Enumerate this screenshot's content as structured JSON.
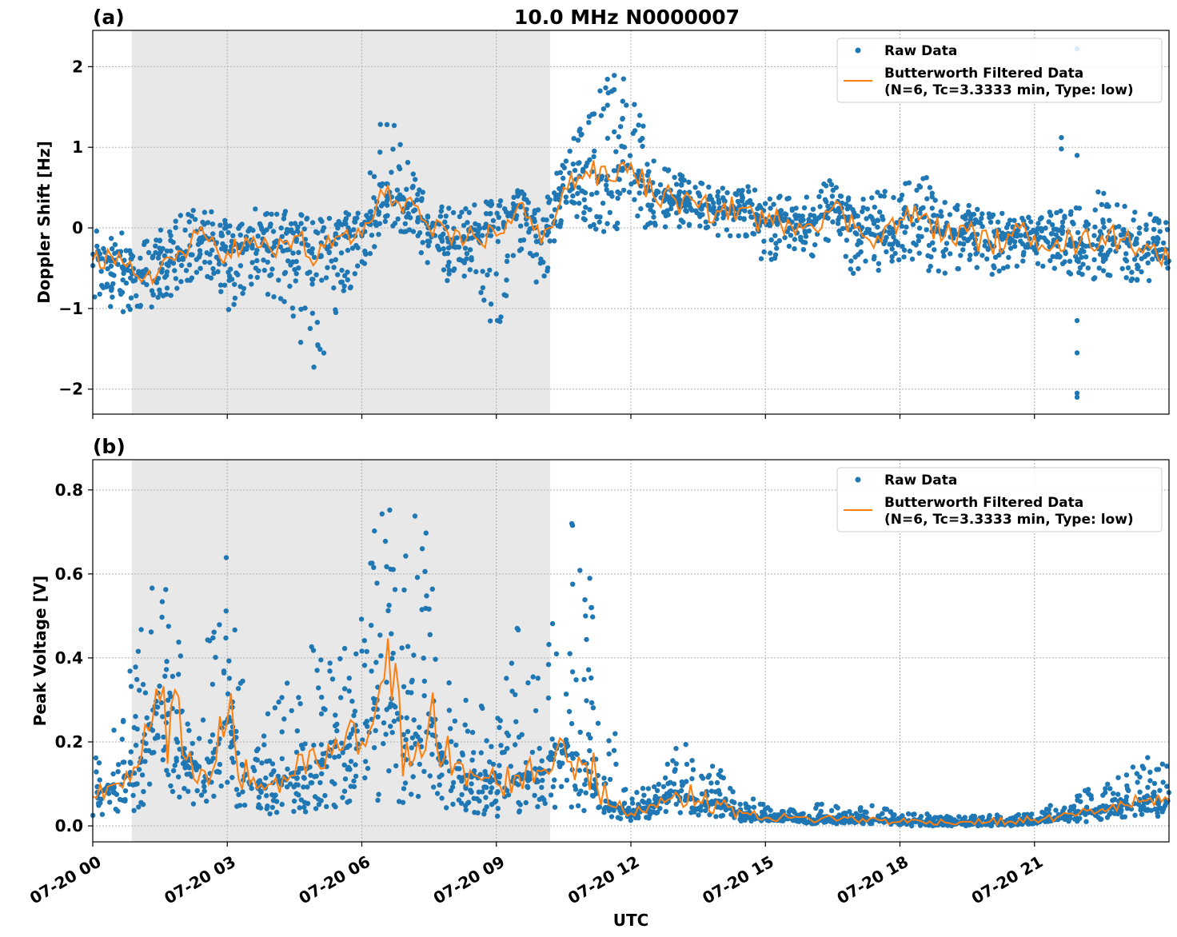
{
  "chart_data": [
    {
      "type": "scatter",
      "panel_label": "(a)",
      "title": "10.0 MHz N0000007",
      "ylabel": "Doppler Shift [Hz]",
      "xlabel": "",
      "x_unit": "hours UTC on 07-20",
      "xlim": [
        0,
        24
      ],
      "ylim": [
        -2.31,
        2.45
      ],
      "yticks": [
        2,
        1,
        0,
        -1,
        -2
      ],
      "ytick_labels": [
        "2",
        "1",
        "0",
        "−1",
        "−2"
      ],
      "grid": true,
      "legend": {
        "placement": "top-right",
        "entries": [
          "Raw Data",
          "Butterworth Filtered Data",
          "(N=6, Tc=3.3333 min, Type: low)"
        ]
      },
      "shaded_region_hours": [
        0.87,
        10.2
      ],
      "x": [
        0,
        0.5,
        1,
        1.5,
        2,
        2.5,
        3,
        3.5,
        4,
        4.5,
        5,
        5.5,
        6,
        6.5,
        7,
        7.5,
        8,
        8.5,
        9,
        9.5,
        10,
        10.5,
        11,
        11.5,
        12,
        12.5,
        13,
        13.5,
        14,
        14.5,
        15,
        15.5,
        16,
        16.5,
        17,
        17.5,
        18,
        18.5,
        19,
        19.5,
        20,
        20.5,
        21,
        21.5,
        22,
        22.5,
        23,
        23.5,
        24
      ],
      "series": [
        {
          "name": "Butterworth Filtered Data",
          "kind": "line",
          "values": [
            -0.4,
            -0.45,
            -0.6,
            -0.5,
            -0.3,
            -0.1,
            -0.3,
            -0.2,
            -0.3,
            -0.1,
            -0.4,
            -0.1,
            -0.1,
            0.4,
            0.35,
            0.0,
            -0.2,
            -0.1,
            -0.1,
            0.3,
            -0.2,
            0.5,
            0.7,
            0.6,
            0.8,
            0.4,
            0.35,
            0.25,
            0.2,
            0.25,
            0.05,
            0.1,
            0.05,
            0.25,
            0.0,
            -0.1,
            0.1,
            0.15,
            -0.1,
            -0.05,
            -0.2,
            -0.1,
            -0.1,
            -0.15,
            -0.2,
            -0.1,
            -0.15,
            -0.2,
            -0.4
          ]
        },
        {
          "name": "Raw Data",
          "kind": "scatter-envelope",
          "low": [
            -0.9,
            -1.0,
            -1.15,
            -1.0,
            -0.8,
            -0.6,
            -1.2,
            -0.8,
            -0.9,
            -1.3,
            -2.0,
            -0.9,
            -0.6,
            0.0,
            -0.1,
            -0.5,
            -0.7,
            -0.6,
            -1.4,
            -0.3,
            -0.8,
            0.1,
            0.0,
            -0.1,
            0.0,
            0.0,
            0.0,
            -0.05,
            -0.1,
            -0.1,
            -0.45,
            -0.3,
            -0.4,
            -0.1,
            -0.7,
            -0.55,
            -0.4,
            -0.5,
            -0.7,
            -0.5,
            -0.6,
            -0.5,
            -0.5,
            -0.55,
            -0.7,
            -0.6,
            -0.65,
            -0.7,
            -0.8
          ],
          "high": [
            0.05,
            0.0,
            -0.1,
            0.0,
            0.2,
            0.25,
            0.15,
            0.25,
            0.2,
            0.25,
            0.15,
            0.2,
            0.25,
            1.7,
            0.85,
            0.3,
            0.3,
            0.3,
            0.35,
            0.5,
            0.2,
            0.9,
            1.4,
            2.0,
            1.85,
            0.9,
            0.7,
            0.6,
            0.5,
            0.55,
            0.4,
            0.45,
            0.4,
            0.65,
            0.4,
            0.5,
            0.5,
            0.75,
            0.35,
            0.3,
            0.2,
            0.2,
            0.25,
            0.25,
            0.3,
            0.5,
            0.3,
            0.2,
            0.1
          ]
        },
        {
          "name": "Raw Data outliers",
          "kind": "points",
          "points": [
            [
              21.6,
              1.12
            ],
            [
              21.6,
              0.98
            ],
            [
              21.95,
              0.9
            ],
            [
              21.95,
              -1.15
            ],
            [
              21.95,
              -1.55
            ],
            [
              21.95,
              -2.05
            ],
            [
              21.95,
              -2.1
            ],
            [
              21.95,
              2.22
            ]
          ]
        }
      ]
    },
    {
      "type": "scatter",
      "panel_label": "(b)",
      "ylabel": "Peak Voltage [V]",
      "xlabel": "UTC",
      "xlim": [
        0,
        24
      ],
      "ylim": [
        -0.038,
        0.872
      ],
      "yticks": [
        0.0,
        0.2,
        0.4,
        0.6,
        0.8
      ],
      "ytick_labels": [
        "0.0",
        "0.2",
        "0.4",
        "0.6",
        "0.8"
      ],
      "xticks": [
        0,
        3,
        6,
        9,
        12,
        15,
        18,
        21
      ],
      "xtick_labels": [
        "07-20 00",
        "07-20 03",
        "07-20 06",
        "07-20 09",
        "07-20 12",
        "07-20 15",
        "07-20 18",
        "07-20 21"
      ],
      "grid": true,
      "legend": {
        "placement": "top-right",
        "entries": [
          "Raw Data",
          "Butterworth Filtered Data",
          "(N=6, Tc=3.3333 min, Type: low)"
        ]
      },
      "shaded_region_hours": [
        0.87,
        10.2
      ],
      "x": [
        0,
        0.5,
        1,
        1.5,
        2,
        2.5,
        3,
        3.5,
        4,
        4.5,
        5,
        5.5,
        6,
        6.5,
        7,
        7.5,
        8,
        8.5,
        9,
        9.5,
        10,
        10.5,
        11,
        11.5,
        12,
        12.5,
        13,
        13.5,
        14,
        14.5,
        15,
        15.5,
        16,
        16.5,
        17,
        17.5,
        18,
        18.5,
        19,
        19.5,
        20,
        20.5,
        21,
        21.5,
        22,
        22.5,
        23,
        23.5,
        24
      ],
      "series": [
        {
          "name": "Butterworth Filtered Data",
          "kind": "line",
          "values": [
            0.07,
            0.1,
            0.14,
            0.3,
            0.17,
            0.13,
            0.25,
            0.1,
            0.1,
            0.12,
            0.15,
            0.18,
            0.2,
            0.35,
            0.2,
            0.25,
            0.12,
            0.12,
            0.1,
            0.12,
            0.13,
            0.2,
            0.15,
            0.05,
            0.03,
            0.05,
            0.08,
            0.06,
            0.05,
            0.03,
            0.02,
            0.02,
            0.015,
            0.02,
            0.015,
            0.015,
            0.01,
            0.01,
            0.008,
            0.01,
            0.01,
            0.01,
            0.015,
            0.02,
            0.03,
            0.04,
            0.05,
            0.06,
            0.06
          ]
        },
        {
          "name": "Raw Data",
          "kind": "scatter-envelope",
          "low": [
            0.02,
            0.03,
            0.03,
            0.05,
            0.04,
            0.03,
            0.05,
            0.03,
            0.02,
            0.03,
            0.03,
            0.04,
            0.05,
            0.06,
            0.05,
            0.05,
            0.03,
            0.03,
            0.02,
            0.03,
            0.03,
            0.05,
            0.03,
            0.02,
            0.01,
            0.02,
            0.03,
            0.02,
            0.02,
            0.01,
            0.01,
            0.01,
            0.005,
            0.005,
            0.005,
            0.005,
            0.0,
            0.0,
            0.0,
            0.0,
            0.0,
            0.0,
            0.005,
            0.01,
            0.01,
            0.01,
            0.02,
            0.02,
            0.02
          ],
          "high": [
            0.15,
            0.25,
            0.5,
            0.67,
            0.4,
            0.48,
            0.68,
            0.2,
            0.3,
            0.45,
            0.47,
            0.42,
            0.55,
            0.83,
            0.8,
            0.69,
            0.3,
            0.35,
            0.25,
            0.49,
            0.35,
            0.71,
            0.77,
            0.3,
            0.08,
            0.1,
            0.23,
            0.16,
            0.14,
            0.08,
            0.05,
            0.04,
            0.035,
            0.1,
            0.04,
            0.055,
            0.03,
            0.03,
            0.025,
            0.025,
            0.025,
            0.03,
            0.04,
            0.06,
            0.08,
            0.12,
            0.14,
            0.18,
            0.2
          ]
        }
      ]
    }
  ],
  "colors": {
    "raw": "#1f77b4",
    "filtered": "#ff7f0e",
    "shade": "#e8e8e8",
    "grid": "#b0b0b0"
  }
}
